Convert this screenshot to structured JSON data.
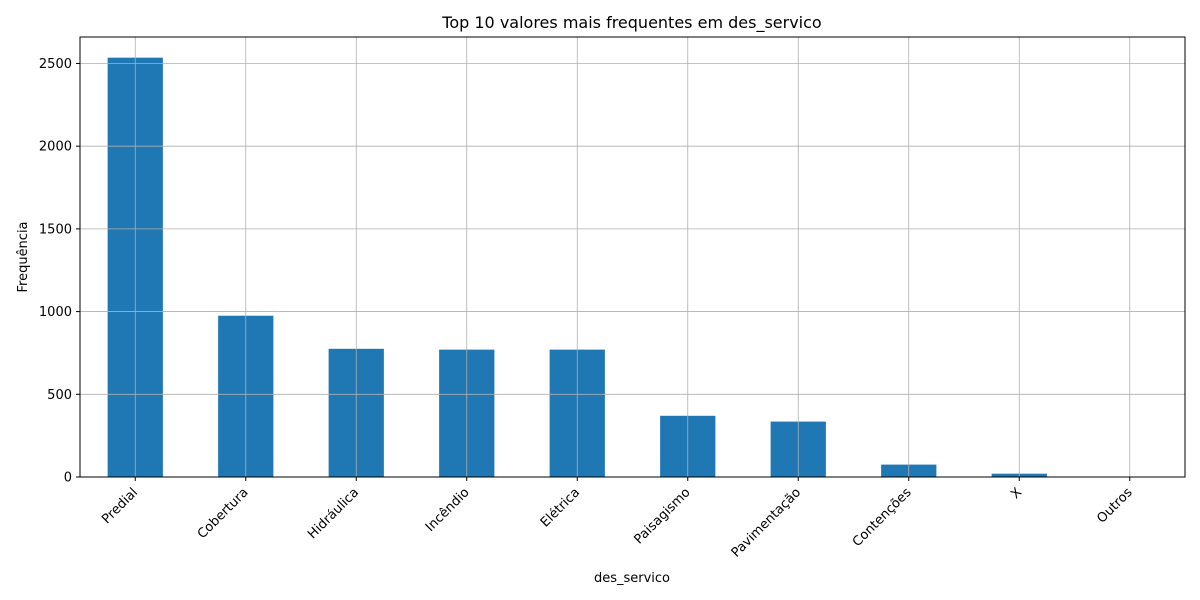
{
  "chart_data": {
    "type": "bar",
    "title": "Top 10 valores mais frequentes em des_servico",
    "xlabel": "des_servico",
    "ylabel": "Frequência",
    "categories": [
      "Predial",
      "Cobertura",
      "Hidráulica",
      "Incêndio",
      "Elétrica",
      "Paisagismo",
      "Pavimentação",
      "Contenções",
      "X",
      "Outros"
    ],
    "values": [
      2535,
      975,
      775,
      770,
      770,
      370,
      335,
      75,
      20,
      2
    ],
    "ylim": [
      0,
      2660
    ],
    "yticks": [
      0,
      500,
      1000,
      1500,
      2000,
      2500
    ],
    "grid": true,
    "bar_color": "#1f77b4",
    "grid_color": "#b0b0b0"
  }
}
